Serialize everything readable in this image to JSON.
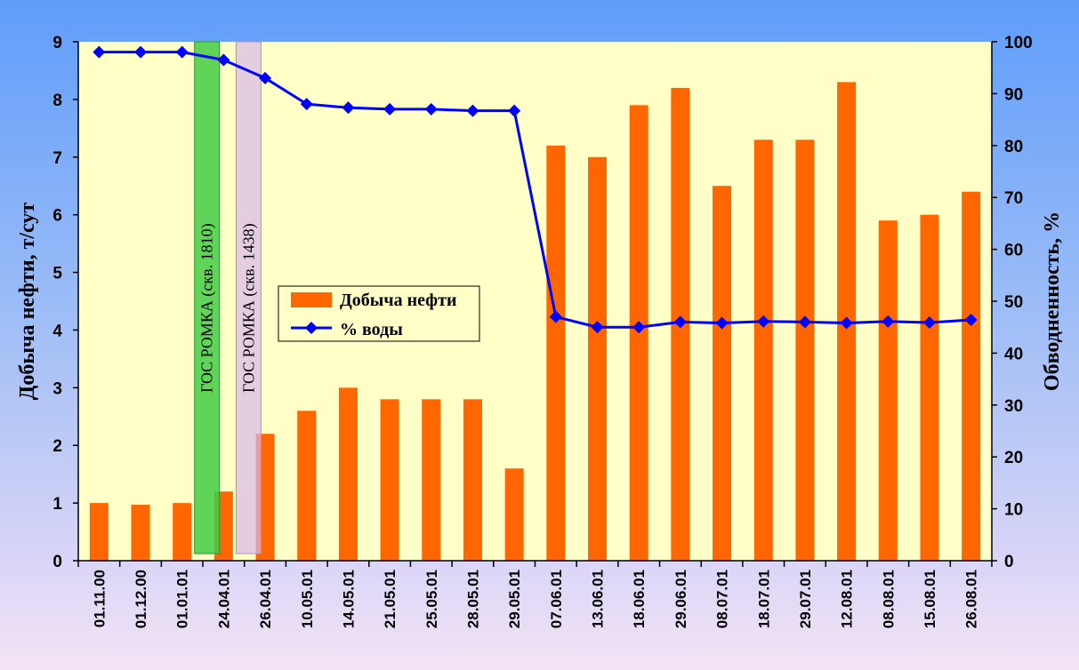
{
  "chart_data": {
    "type": "bar+line",
    "categories": [
      "01.11.00",
      "01.12.00",
      "01.01.01",
      "24.04.01",
      "26.04.01",
      "10.05.01",
      "14.05.01",
      "21.05.01",
      "25.05.01",
      "28.05.01",
      "29.05.01",
      "07.06.01",
      "13.06.01",
      "18.06.01",
      "29.06.01",
      "08.07.01",
      "18.07.01",
      "29.07.01",
      "12.08.01",
      "08.08.01",
      "15.08.01",
      "26.08.01"
    ],
    "series": [
      {
        "name": "Добыча нефти",
        "axis": "left",
        "kind": "bar",
        "color": "#ff6600",
        "values": [
          1.0,
          0.97,
          1.0,
          1.2,
          2.2,
          2.6,
          3.0,
          2.8,
          2.8,
          2.8,
          1.6,
          7.2,
          7.0,
          7.9,
          8.2,
          6.5,
          7.3,
          7.3,
          8.3,
          5.9,
          6.0,
          6.4
        ]
      },
      {
        "name": "% воды",
        "axis": "right",
        "kind": "line",
        "color": "#0000ff",
        "values": [
          98,
          98,
          98,
          96.5,
          93,
          88,
          87.3,
          87,
          87,
          86.7,
          86.7,
          47,
          45,
          45,
          46,
          45.8,
          46.1,
          46,
          45.8,
          46.1,
          45.9,
          46.4
        ]
      }
    ],
    "ylabel_left": "Добыча нефти, т/сут",
    "ylabel_right": "Обводненность, %",
    "ylim_left": [
      0,
      9
    ],
    "ylim_right": [
      0,
      100
    ],
    "yticks_left": [
      "0",
      "1",
      "2",
      "3",
      "4",
      "5",
      "6",
      "7",
      "8",
      "9"
    ],
    "yticks_right": [
      "0",
      "10",
      "20",
      "30",
      "40",
      "50",
      "60",
      "70",
      "80",
      "90",
      "100"
    ],
    "annotations": [
      {
        "text": "ГОС РОМКА (скв. 1810)",
        "color": "#44cc44",
        "between": [
          "01.01.01",
          "24.04.01"
        ],
        "offset": 0.3
      },
      {
        "text": "ГОС РОМКА (скв. 1438)",
        "color": "#d8b8e8",
        "between": [
          "24.04.01",
          "26.04.01"
        ],
        "offset": 0.3
      }
    ],
    "legend_position": "center-left",
    "plot_background": "#ffffc8"
  }
}
